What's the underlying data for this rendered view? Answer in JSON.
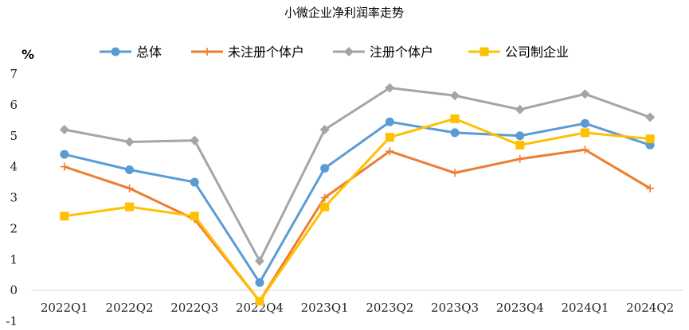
{
  "chart_data": {
    "type": "line",
    "title": "小微企业净利润率走势",
    "ylabel": "%",
    "xlabel": "",
    "categories": [
      "2022Q1",
      "2022Q2",
      "2022Q3",
      "2022Q4",
      "2023Q1",
      "2023Q2",
      "2023Q3",
      "2023Q4",
      "2024Q1",
      "2024Q2"
    ],
    "ylim": [
      -1,
      7
    ],
    "yticks": [
      "-1",
      "0",
      "1",
      "2",
      "3",
      "4",
      "5",
      "6",
      "7"
    ],
    "grid": false,
    "legend_position": "top",
    "series": [
      {
        "name": "总体",
        "color": "#5B9BD5",
        "marker": "circle",
        "values": [
          4.4,
          3.9,
          3.5,
          0.25,
          3.95,
          5.45,
          5.1,
          5.0,
          5.4,
          4.7
        ]
      },
      {
        "name": "未注册个体户",
        "color": "#ED7D31",
        "marker": "plus",
        "values": [
          4.0,
          3.3,
          2.3,
          -0.35,
          3.0,
          4.5,
          3.8,
          4.25,
          4.55,
          3.3
        ]
      },
      {
        "name": "注册个体户",
        "color": "#A5A5A5",
        "marker": "diamond",
        "values": [
          5.2,
          4.8,
          4.85,
          0.95,
          5.2,
          6.55,
          6.3,
          5.85,
          6.35,
          5.6
        ]
      },
      {
        "name": "公司制企业",
        "color": "#FFC000",
        "marker": "square",
        "values": [
          2.4,
          2.7,
          2.4,
          -0.35,
          2.7,
          4.95,
          5.55,
          4.7,
          5.1,
          4.9
        ]
      }
    ]
  }
}
